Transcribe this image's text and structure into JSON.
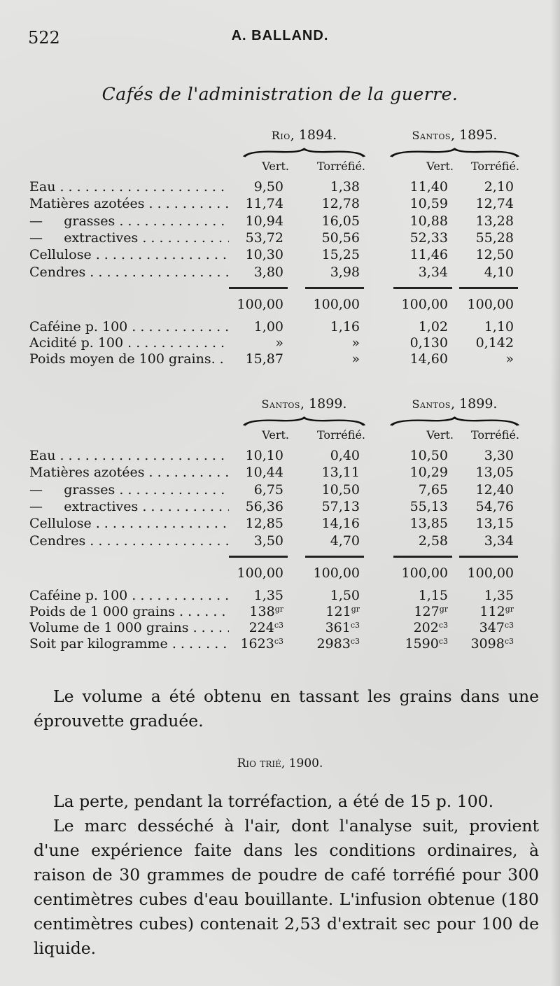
{
  "header": {
    "page_number": "522",
    "running_head": "A. BALLAND."
  },
  "title": "Cafés de l'administration de la guerre.",
  "tables": [
    {
      "groups": [
        {
          "name": "Rio",
          "year": ", 1894."
        },
        {
          "name": "Santos",
          "year": ", 1895."
        }
      ],
      "subheads": [
        "Vert.",
        "Torréfié.",
        "Vert.",
        "Torréfié."
      ],
      "rows": [
        {
          "label": "Eau",
          "values": [
            "9,50",
            "1,38",
            "11,40",
            "2,10"
          ]
        },
        {
          "label": "Matières azotées",
          "values": [
            "11,74",
            "12,78",
            "10,59",
            "12,74"
          ]
        },
        {
          "label": "—     grasses",
          "values": [
            "10,94",
            "16,05",
            "10,88",
            "13,28"
          ]
        },
        {
          "label": "—     extractives",
          "values": [
            "53,72",
            "50,56",
            "52,33",
            "55,28"
          ]
        },
        {
          "label": "Cellulose",
          "values": [
            "10,30",
            "15,25",
            "11,46",
            "12,50"
          ]
        },
        {
          "label": "Cendres",
          "values": [
            "3,80",
            "3,98",
            "3,34",
            "4,10"
          ]
        }
      ],
      "totals": [
        "100,00",
        "100,00",
        "100,00",
        "100,00"
      ],
      "extra_rows": [
        {
          "label": "Caféine p. 100",
          "values": [
            [
              "1,00",
              ""
            ],
            [
              "1,16",
              ""
            ],
            [
              "1,02",
              ""
            ],
            [
              "1,10",
              ""
            ]
          ]
        },
        {
          "label": "Acidité p. 100",
          "values": [
            [
              "»",
              ""
            ],
            [
              "»",
              ""
            ],
            [
              "0,130",
              ""
            ],
            [
              "0,142",
              ""
            ]
          ]
        },
        {
          "label": "Poids moyen de 100 grains.",
          "values": [
            [
              "15,87",
              ""
            ],
            [
              "»",
              ""
            ],
            [
              "14,60",
              ""
            ],
            [
              "»",
              ""
            ]
          ]
        }
      ]
    },
    {
      "groups": [
        {
          "name": "Santos",
          "year": ", 1899."
        },
        {
          "name": "Santos",
          "year": ", 1899."
        }
      ],
      "subheads": [
        "Vert.",
        "Torréfié.",
        "Vert.",
        "Torréfié."
      ],
      "rows": [
        {
          "label": "Eau",
          "values": [
            "10,10",
            "0,40",
            "10,50",
            "3,30"
          ]
        },
        {
          "label": "Matières azotées",
          "values": [
            "10,44",
            "13,11",
            "10,29",
            "13,05"
          ]
        },
        {
          "label": "—     grasses",
          "values": [
            "6,75",
            "10,50",
            "7,65",
            "12,40"
          ]
        },
        {
          "label": "—     extractives",
          "values": [
            "56,36",
            "57,13",
            "55,13",
            "54,76"
          ]
        },
        {
          "label": "Cellulose",
          "values": [
            "12,85",
            "14,16",
            "13,85",
            "13,15"
          ]
        },
        {
          "label": "Cendres",
          "values": [
            "3,50",
            "4,70",
            "2,58",
            "3,34"
          ]
        }
      ],
      "totals": [
        "100,00",
        "100,00",
        "100,00",
        "100,00"
      ],
      "extra_rows": [
        {
          "label": "Caféine p. 100",
          "values": [
            [
              "1,35",
              ""
            ],
            [
              "1,50",
              ""
            ],
            [
              "1,15",
              ""
            ],
            [
              "1,35",
              ""
            ]
          ]
        },
        {
          "label": "Poids de 1 000 grains",
          "values": [
            [
              "138",
              "gr"
            ],
            [
              "121",
              "gr"
            ],
            [
              "127",
              "gr"
            ],
            [
              "112",
              "gr"
            ]
          ]
        },
        {
          "label": "Volume de 1 000 grains",
          "values": [
            [
              "224",
              "c3"
            ],
            [
              "361",
              "c3"
            ],
            [
              "202",
              "c3"
            ],
            [
              "347",
              "c3"
            ]
          ]
        },
        {
          "label": "Soit par kilogramme",
          "values": [
            [
              "1623",
              "c3"
            ],
            [
              "2983",
              "c3"
            ],
            [
              "1590",
              "c3"
            ],
            [
              "3098",
              "c3"
            ]
          ]
        }
      ]
    }
  ],
  "paragraph1": "Le volume a été obtenu en tassant les grains dans une éprouvette graduée.",
  "section_head": {
    "name": "Rio trié",
    "year": ", 1900."
  },
  "paragraph2": "La perte, pendant la torréfaction, a été de 15 p. 100.",
  "paragraph3": "Le marc desséché à l'air, dont l'analyse suit, provient d'une expérience faite dans les conditions ordinaires, à raison de 30 grammes de poudre de café torréfié pour 300 centimètres cubes d'eau bouillante. L'infusion obtenue (180 centimètres cubes) contenait 2,53 d'extrait sec pour 100 de liquide."
}
